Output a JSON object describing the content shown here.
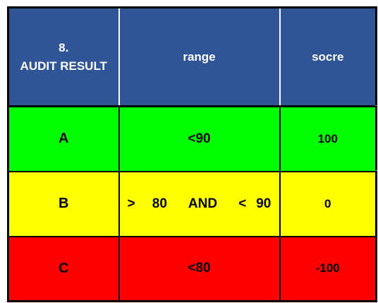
{
  "header": {
    "col1_line1": "8.",
    "col1_line2": "AUDIT RESULT",
    "col2": "range",
    "col3": "socre"
  },
  "rows": [
    {
      "grade": "A",
      "range": "<90",
      "score": "100",
      "color": "#00ff00"
    },
    {
      "grade": "B",
      "range_parts": [
        ">",
        "80",
        "AND",
        "<",
        "90"
      ],
      "score": "0",
      "color": "#ffff00"
    },
    {
      "grade": "C",
      "range": "<80",
      "score": "-100",
      "color": "#ff0000"
    }
  ],
  "colors": {
    "header_bg": "#2f5597",
    "header_text": "#ffffff",
    "border": "#000000"
  }
}
